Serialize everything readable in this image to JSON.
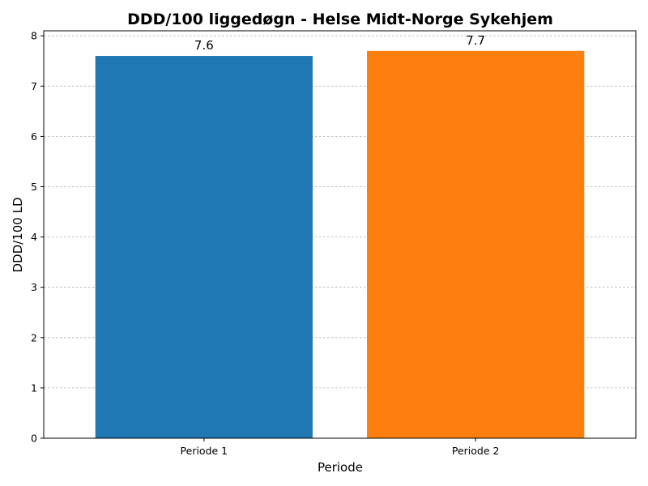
{
  "chart_data": {
    "type": "bar",
    "title": "DDD/100 liggedøgn - Helse Midt-Norge Sykehjem",
    "xlabel": "Periode",
    "ylabel": "DDD/100 LD",
    "categories": [
      "Periode 1",
      "Periode 2"
    ],
    "values": [
      7.6,
      7.7
    ],
    "data_labels": [
      "7.6",
      "7.7"
    ],
    "colors": [
      "#1f77b4",
      "#ff7f0e"
    ],
    "ylim": [
      0,
      8.1
    ],
    "yticks": [
      0,
      1,
      2,
      3,
      4,
      5,
      6,
      7,
      8
    ],
    "grid": true
  }
}
